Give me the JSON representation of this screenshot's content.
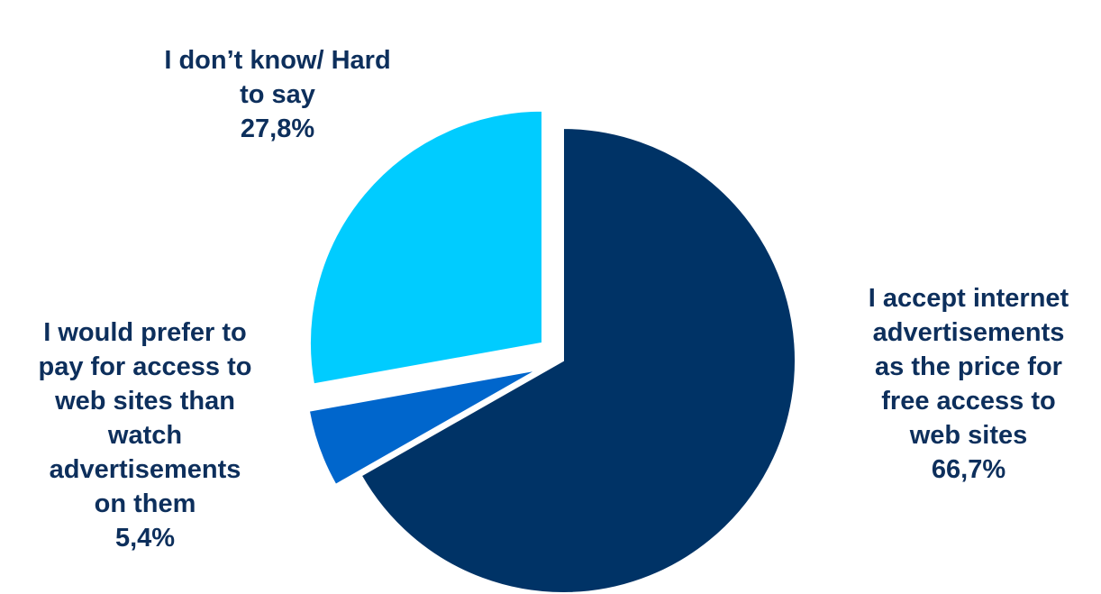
{
  "chart_data": {
    "type": "pie",
    "title": "",
    "slices": [
      {
        "label": "I accept internet\nadvertisements\nas the price for\nfree access to\nweb sites",
        "value": 66.7,
        "value_label": "66,7%",
        "color": "#003366",
        "exploded": false
      },
      {
        "label": "I would prefer to\npay for access to\nweb sites than\nwatch\nadvertisements\non them",
        "value": 5.4,
        "value_label": "5,4%",
        "color": "#0066cc",
        "exploded": true
      },
      {
        "label": "I don’t know/ Hard\nto say",
        "value": 27.8,
        "value_label": "27,8%",
        "color": "#00ccff",
        "exploded": true
      }
    ],
    "label_color": "#0d2f5c",
    "start_angle_deg": 0,
    "direction": "clockwise",
    "legend": "none"
  }
}
